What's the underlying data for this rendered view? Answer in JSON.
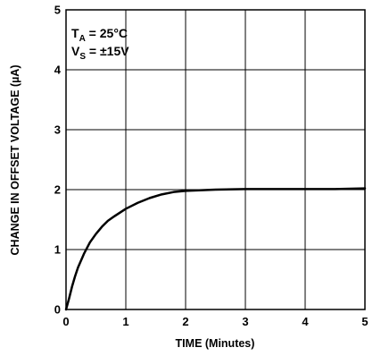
{
  "chart_data": {
    "type": "line",
    "title": "",
    "xlabel": "TIME (Minutes)",
    "ylabel": "CHANGE IN OFFSET VOLTAGE (µA)",
    "xlim": [
      0,
      5
    ],
    "ylim": [
      0,
      5
    ],
    "xticks": [
      "0",
      "1",
      "2",
      "3",
      "4",
      "5"
    ],
    "yticks": [
      "0",
      "1",
      "2",
      "3",
      "4",
      "5"
    ],
    "grid": true,
    "annotations": {
      "line1": {
        "main": "T",
        "sub": "A",
        "rest": " = 25°C"
      },
      "line2": {
        "main": "V",
        "sub": "S",
        "rest": " = ±15V"
      }
    },
    "series": [
      {
        "color": "#000000",
        "x": [
          0,
          0.05,
          0.1,
          0.15,
          0.2,
          0.3,
          0.4,
          0.5,
          0.6,
          0.7,
          0.8,
          1.0,
          1.2,
          1.4,
          1.6,
          1.8,
          2.0,
          2.5,
          3.0,
          3.5,
          4.0,
          4.5,
          5.0
        ],
        "y": [
          0,
          0.18,
          0.38,
          0.55,
          0.7,
          0.93,
          1.12,
          1.26,
          1.38,
          1.48,
          1.55,
          1.68,
          1.78,
          1.86,
          1.92,
          1.96,
          1.98,
          2.0,
          2.01,
          2.01,
          2.01,
          2.01,
          2.02
        ]
      }
    ]
  }
}
